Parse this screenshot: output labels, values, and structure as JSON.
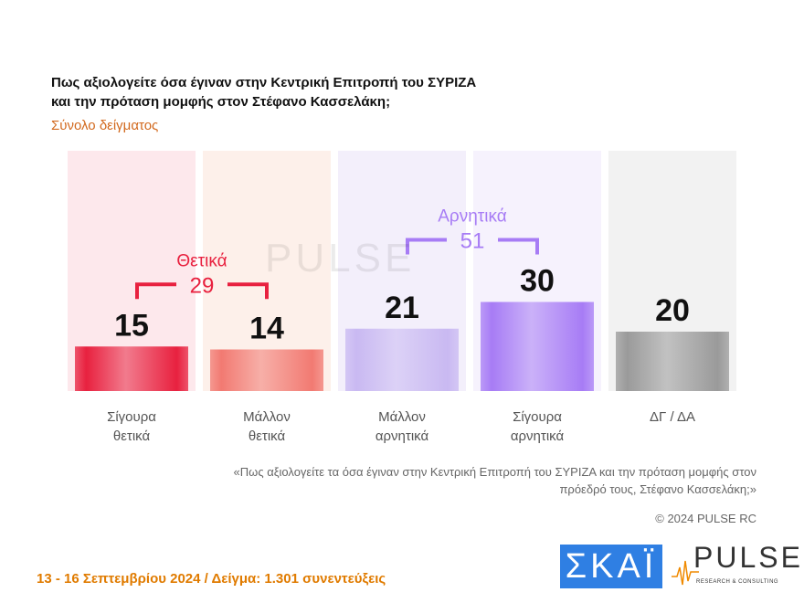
{
  "title_line1": "Πως αξιολογείτε όσα έγιναν στην Κεντρική Επιτροπή του ΣΥΡΙΖΑ",
  "title_line2": "και την πρόταση μομφής στον Στέφανο Κασσελάκη;",
  "subtitle": "Σύνολο δείγματος",
  "chart_data": {
    "type": "bar",
    "categories": [
      [
        "Σίγουρα",
        "θετικά"
      ],
      [
        "Μάλλον",
        "θετικά"
      ],
      [
        "Μάλλον",
        "αρνητικά"
      ],
      [
        "Σίγουρα",
        "αρνητικά"
      ],
      [
        "ΔΓ / ΔΑ",
        ""
      ]
    ],
    "values": [
      15,
      14,
      21,
      30,
      20
    ],
    "colors": [
      "#e8213f",
      "#f27a72",
      "#c9b9f2",
      "#a77cf5",
      "#9a9a9a"
    ],
    "panel_colors": [
      "#fde8ec",
      "#fdf0ea",
      "#f3effb",
      "#f6f2fd",
      "#f2f2f2"
    ],
    "groups": [
      {
        "label": "Θετικά",
        "total": "29",
        "from": 0,
        "to": 1,
        "color": "#e8213f"
      },
      {
        "label": "Αρνητικά",
        "total": "51",
        "from": 2,
        "to": 3,
        "color": "#a77cf5"
      }
    ],
    "ylim": [
      0,
      35
    ]
  },
  "watermark": "PULSE",
  "quote": "«Πως αξιολογείτε τα όσα έγιναν στην Κεντρική Επιτροπή του ΣΥΡΙΖΑ και την πρόταση μομφής στον πρόεδρό τους, Στέφανο Κασσελάκη;»",
  "copyright": "© 2024 PULSE RC",
  "footer": "13 - 16 Σεπτεμβρίου 2024  /  Δείγμα:  1.301 συνεντεύξεις",
  "logos": {
    "skai": "ΣΚΑΪ",
    "pulse": "PULSE",
    "pulse_sub": "RESEARCH & CONSULTING"
  }
}
